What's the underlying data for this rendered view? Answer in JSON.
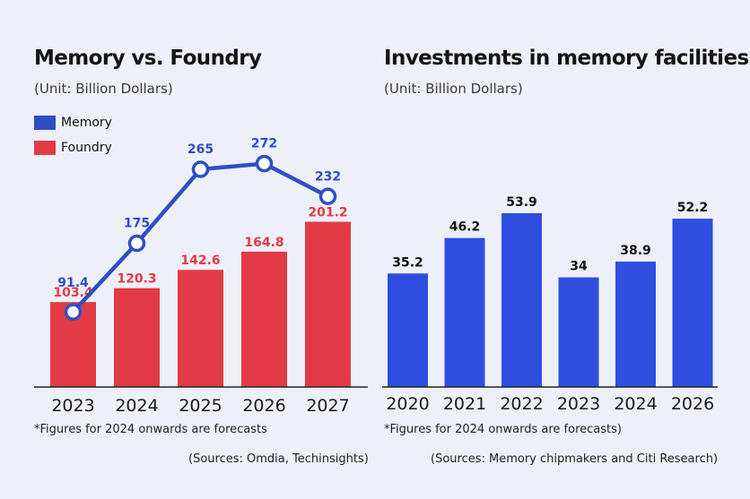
{
  "colors": {
    "memory": "#2f4ec6",
    "foundry": "#e23b45",
    "investment": "#2f4ee0",
    "memory_label": "#2f4ec6",
    "foundry_label": "#e23b45",
    "axis": "#222222"
  },
  "chart_data": [
    {
      "type": "bar+line",
      "title": "Memory vs. Foundry",
      "subtitle": "(Unit: Billion Dollars)",
      "categories": [
        "2023",
        "2024",
        "2025",
        "2026",
        "2027"
      ],
      "series": [
        {
          "name": "Memory",
          "type": "line",
          "values": [
            91.4,
            175,
            265,
            272,
            232
          ],
          "labels": [
            "91.4",
            "175",
            "265",
            "272",
            "232"
          ]
        },
        {
          "name": "Foundry",
          "type": "bar",
          "values": [
            103.4,
            120.3,
            142.6,
            164.8,
            201.2
          ],
          "labels": [
            "103.4",
            "120.3",
            "142.6",
            "164.8",
            "201.2"
          ]
        }
      ],
      "legend": [
        "Memory",
        "Foundry"
      ],
      "legend_position": "top-left",
      "note": "*Figures for 2024 onwards are forecasts",
      "source": "(Sources: Omdia, Techinsights)"
    },
    {
      "type": "bar",
      "title": "Investments in memory facilities",
      "subtitle": "(Unit: Billion Dollars)",
      "categories": [
        "2020",
        "2021",
        "2022",
        "2023",
        "2024",
        "2026"
      ],
      "values": [
        35.2,
        46.2,
        53.9,
        34,
        38.9,
        52.2
      ],
      "labels": [
        "35.2",
        "46.2",
        "53.9",
        "34",
        "38.9",
        "52.2"
      ],
      "note": "*Figures for 2024 onwards are forecasts)",
      "source": "(Sources: Memory chipmakers and Citi Research)"
    }
  ]
}
